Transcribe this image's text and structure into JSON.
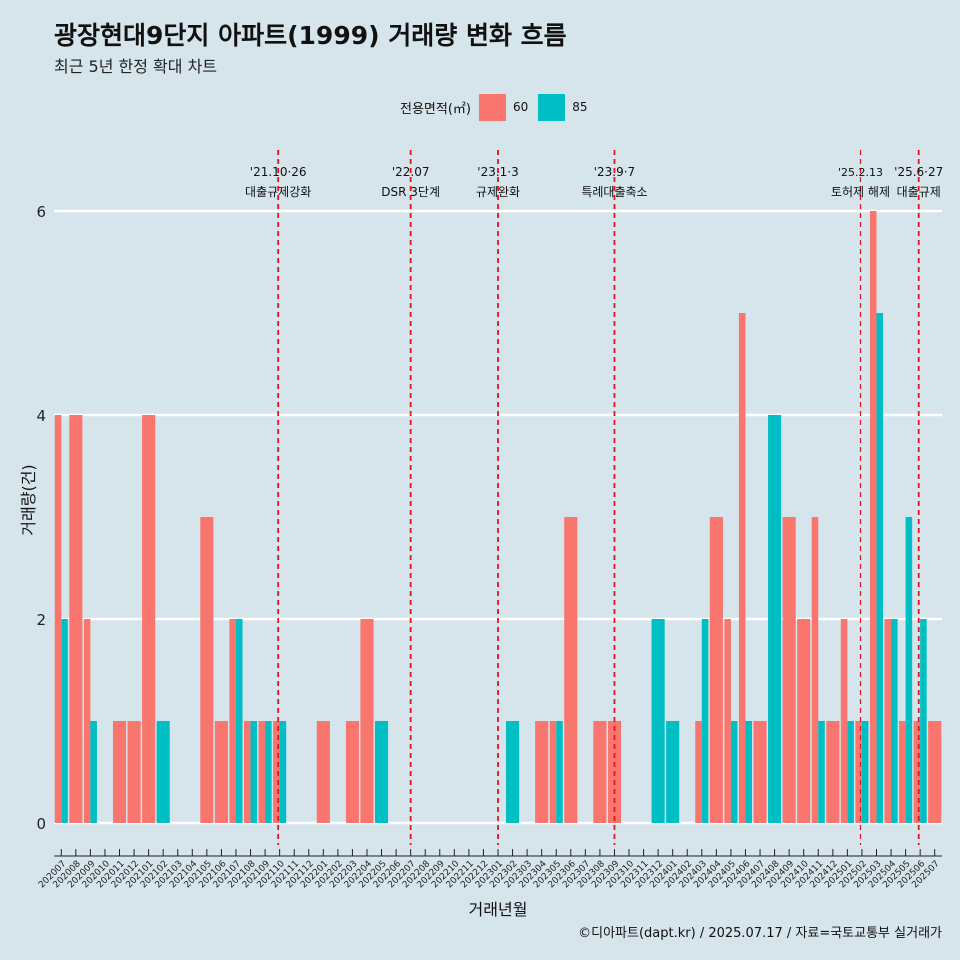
{
  "title": "광장현대9단지 아파트(1999) 거래량 변화 흐름",
  "subtitle": "최근 5년 한정 확대 차트",
  "caption": "©디아파트(dapt.kr) / 2025.07.17 / 자료=국토교통부 실거래가",
  "colors": {
    "s60": "#f8766d",
    "s85": "#00bfc4",
    "vline": "#e8141c"
  },
  "legend": {
    "title": "전용면적(㎡)",
    "items": [
      {
        "label": "60"
      },
      {
        "label": "85"
      }
    ]
  },
  "chart_data": {
    "type": "bar",
    "title": "광장현대9단지 아파트(1999) 거래량 변화 흐름",
    "xlabel": "거래년월",
    "ylabel": "거래량(건)",
    "ylim": [
      0,
      6.3
    ],
    "yticks": [
      0,
      2,
      4,
      6
    ],
    "categories": [
      "202007",
      "202008",
      "202009",
      "202010",
      "202011",
      "202012",
      "202101",
      "202102",
      "202103",
      "202104",
      "202105",
      "202106",
      "202107",
      "202108",
      "202109",
      "202110",
      "202111",
      "202112",
      "202201",
      "202202",
      "202203",
      "202204",
      "202205",
      "202206",
      "202207",
      "202208",
      "202209",
      "202210",
      "202211",
      "202212",
      "202301",
      "202302",
      "202303",
      "202304",
      "202305",
      "202306",
      "202307",
      "202308",
      "202309",
      "202310",
      "202311",
      "202312",
      "202401",
      "202402",
      "202403",
      "202404",
      "202405",
      "202406",
      "202407",
      "202408",
      "202409",
      "202410",
      "202411",
      "202412",
      "202501",
      "202502",
      "202503",
      "202504",
      "202505",
      "202506",
      "202507"
    ],
    "series": [
      {
        "name": "60",
        "values": [
          4,
          4,
          2,
          0,
          1,
          1,
          4,
          0,
          0,
          0,
          3,
          1,
          2,
          1,
          1,
          1,
          0,
          0,
          1,
          0,
          1,
          2,
          0,
          0,
          0,
          0,
          0,
          0,
          0,
          0,
          0,
          0,
          0,
          1,
          1,
          3,
          0,
          1,
          1,
          0,
          0,
          0,
          0,
          0,
          1,
          3,
          2,
          5,
          1,
          0,
          3,
          2,
          3,
          1,
          2,
          1,
          6,
          2,
          1,
          1,
          1
        ]
      },
      {
        "name": "85",
        "values": [
          2,
          0,
          1,
          0,
          0,
          0,
          0,
          1,
          0,
          0,
          0,
          0,
          2,
          1,
          1,
          1,
          0,
          0,
          0,
          0,
          0,
          0,
          1,
          0,
          0,
          0,
          0,
          0,
          0,
          0,
          0,
          1,
          0,
          0,
          1,
          0,
          0,
          0,
          0,
          0,
          0,
          2,
          1,
          0,
          2,
          0,
          1,
          1,
          0,
          4,
          0,
          0,
          1,
          0,
          1,
          1,
          5,
          2,
          3,
          2,
          0
        ]
      }
    ],
    "annotations": [
      {
        "date": "'21.10·26",
        "label": "대출규제강화",
        "position": 15.4
      },
      {
        "date": "'22.07",
        "label": "DSR 3단계",
        "position": 24.5
      },
      {
        "date": "'23.1·3",
        "label": "규제완화",
        "position": 30.5
      },
      {
        "date": "'23.9·7",
        "label": "특례대출축소",
        "position": 38.5
      },
      {
        "date": "'25.2.13",
        "label": "토허제 해제",
        "position": 55.4
      },
      {
        "date": "'25.6·27",
        "label": "대출규제",
        "position": 59.4
      }
    ]
  }
}
